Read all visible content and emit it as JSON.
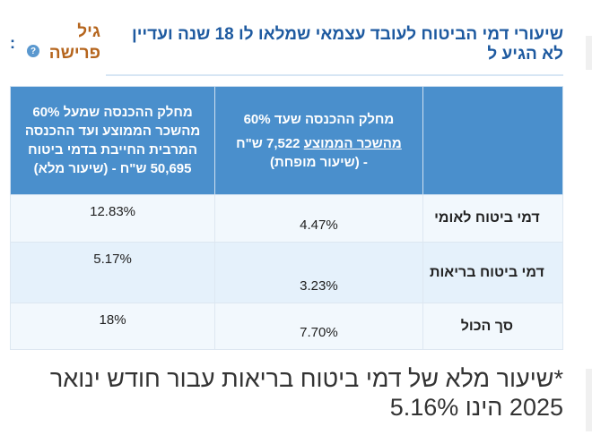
{
  "header": {
    "title": "שיעורי דמי הביטוח לעובד עצמאי שמלאו לו 18 שנה ועדיין לא הגיע ל",
    "age_link": "גיל\nפרישה",
    "help_glyph": "?",
    "menu_glyph": ":"
  },
  "table": {
    "headers": {
      "label": "",
      "reduced_line1": "מחלק ההכנסה שעד 60%",
      "reduced_line2": "מהשכר הממוצע",
      "reduced_line2b": " 7,522 ש\"ח",
      "reduced_line3": "- (שיעור מופחת)",
      "full": "מחלק ההכנסה שמעל 60% מהשכר הממוצע ועד ההכנסה המרבית החייבת בדמי ביטוח 50,695 ש\"ח - (שיעור מלא)"
    },
    "rows": [
      {
        "label": "דמי ביטוח לאומי",
        "reduced": "4.47%",
        "full": "12.83%"
      },
      {
        "label": "דמי ביטוח בריאות",
        "reduced": "3.23%",
        "full": "5.17%"
      },
      {
        "label": "סך הכול",
        "reduced": "7.70%",
        "full": "18%"
      }
    ]
  },
  "footnote": "*שיעור מלא של דמי ביטוח בריאות עבור חודש ינואר 2025 הינו 5.16%"
}
